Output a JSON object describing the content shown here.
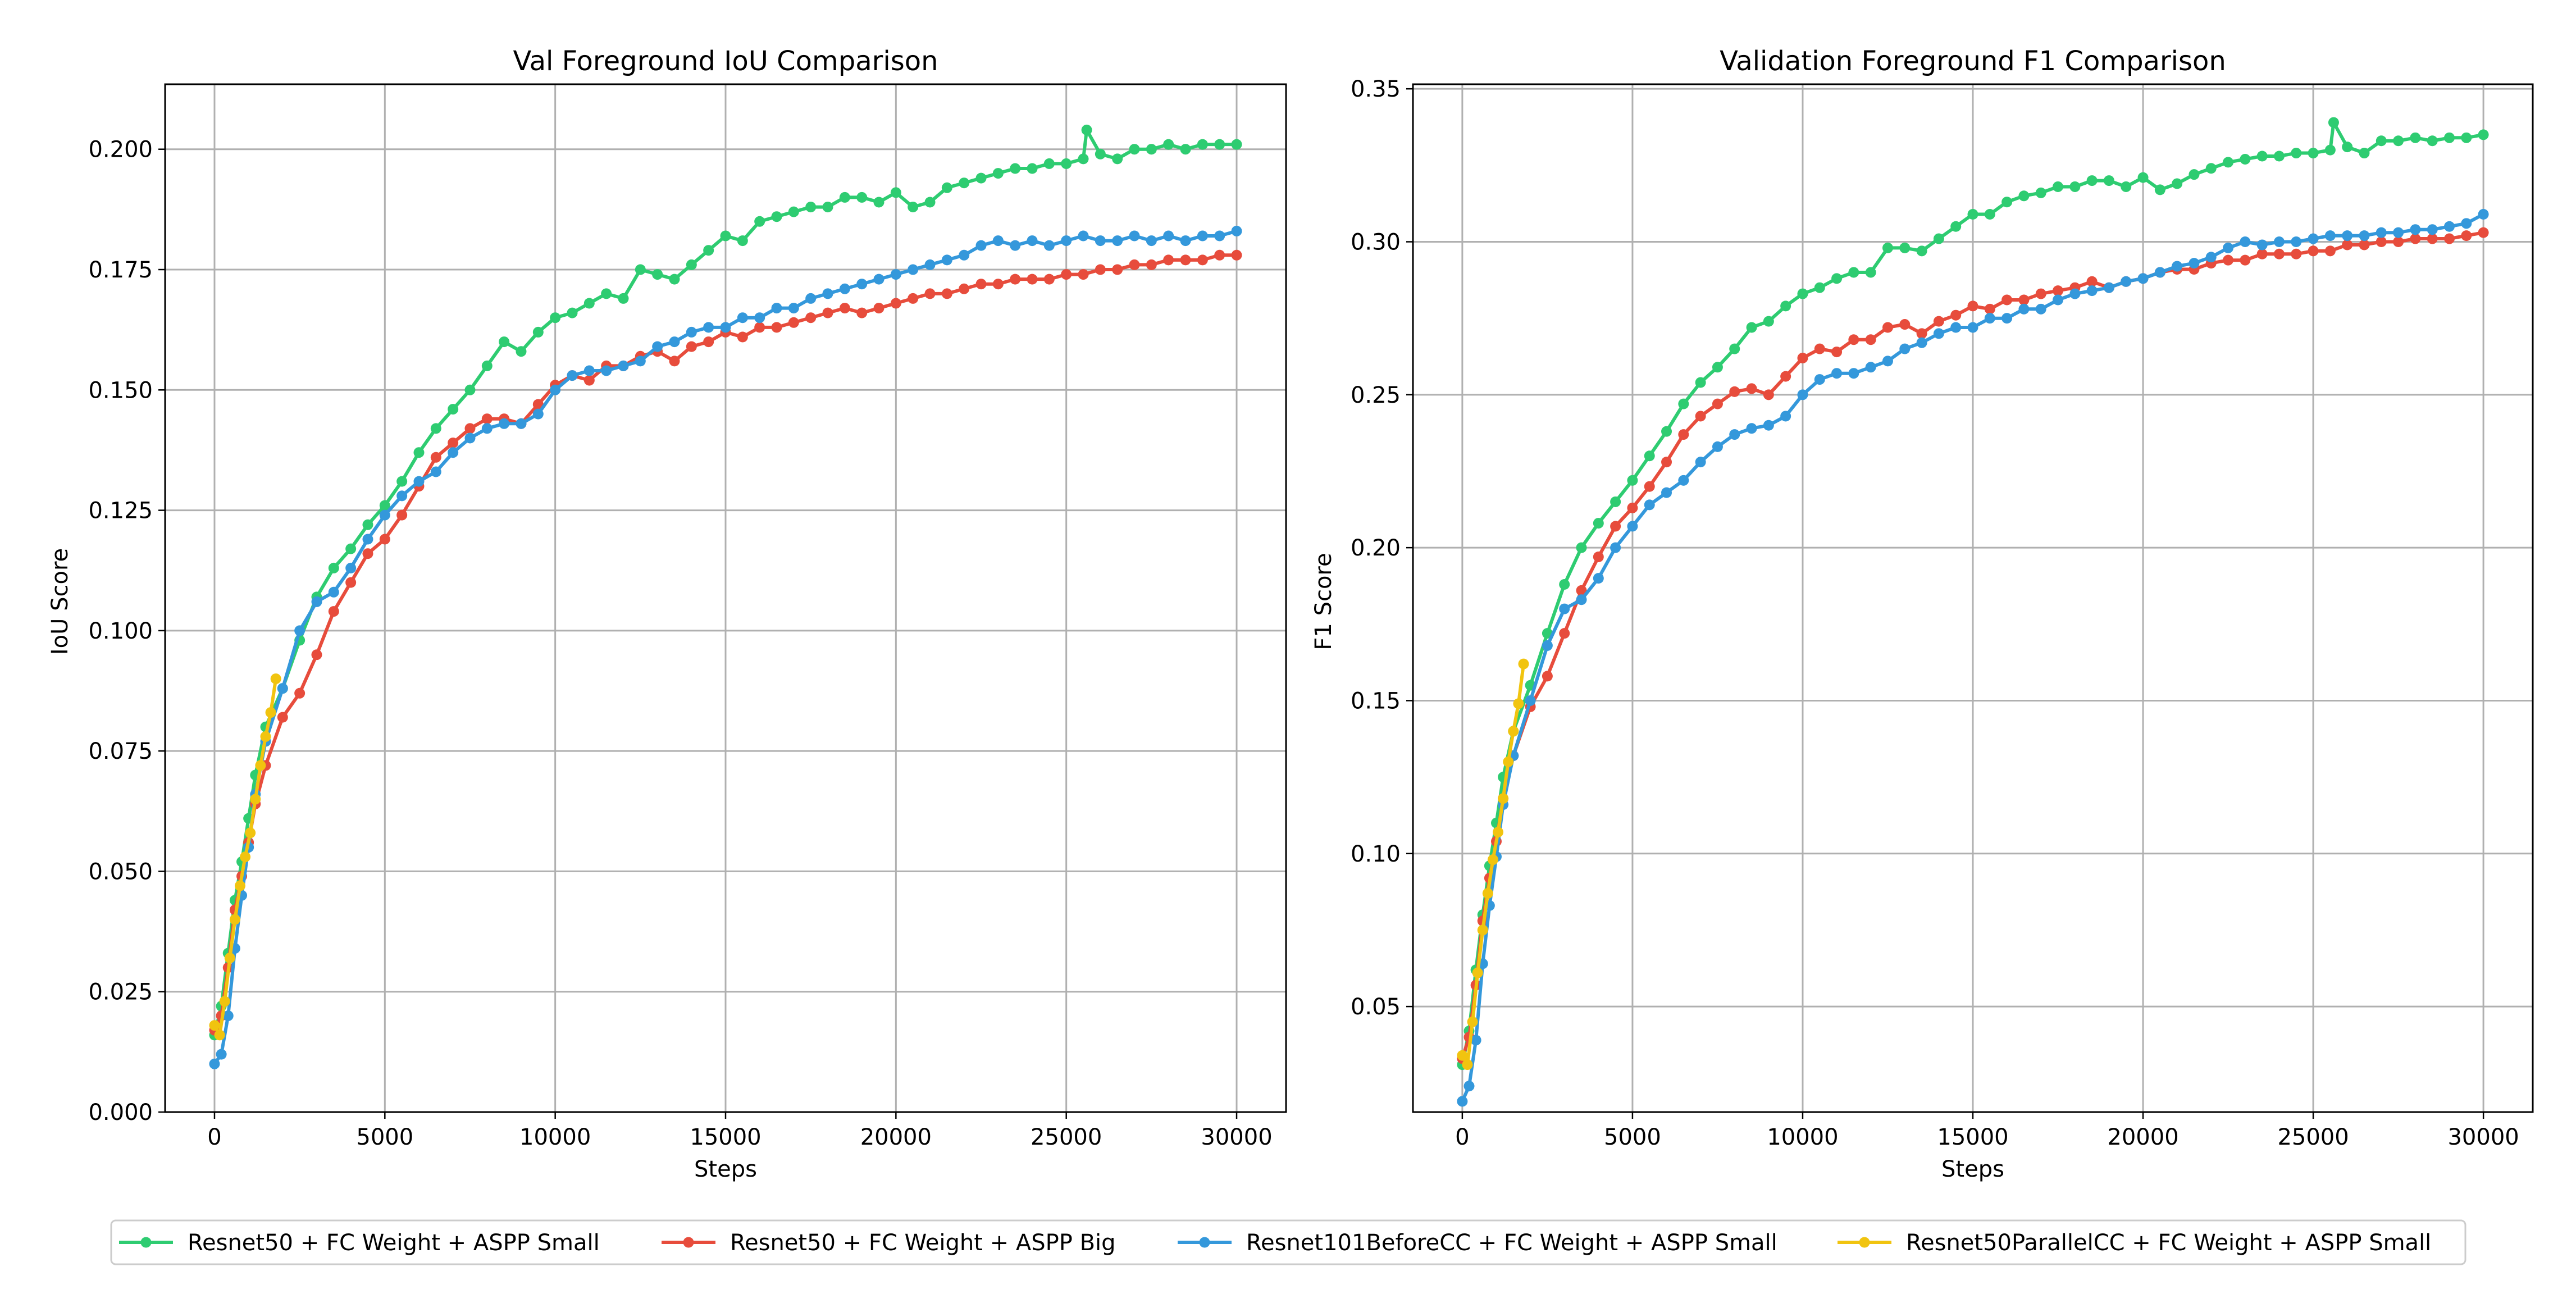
{
  "colors": {
    "green": "#2ecc71",
    "red": "#e74c3c",
    "blue": "#3498db",
    "yellow": "#f1c40f",
    "grid": "#b0b0b0"
  },
  "legend": {
    "placement": "bottom-center",
    "entries": [
      {
        "label": "Resnet50 + FC Weight + ASPP Small",
        "color": "#2ecc71"
      },
      {
        "label": "Resnet50 + FC Weight + ASPP Big",
        "color": "#e74c3c"
      },
      {
        "label": "Resnet101BeforeCC + FC Weight + ASPP Small",
        "color": "#3498db"
      },
      {
        "label": "Resnet50ParallelCC + FC Weight + ASPP Small",
        "color": "#f1c40f"
      }
    ]
  },
  "chart_data": [
    {
      "type": "line",
      "title": "Val Foreground IoU Comparison",
      "xlabel": "Steps",
      "ylabel": "IoU Score",
      "xlim": [
        -1450,
        31450
      ],
      "ylim": [
        0.0,
        0.2135
      ],
      "xticks": [
        0,
        5000,
        10000,
        15000,
        20000,
        25000,
        30000
      ],
      "yticks": [
        0.0,
        0.025,
        0.05,
        0.075,
        0.1,
        0.125,
        0.15,
        0.175,
        0.2
      ],
      "ytick_labels": [
        "0.000",
        "0.025",
        "0.050",
        "0.075",
        "0.100",
        "0.125",
        "0.150",
        "0.175",
        "0.200"
      ],
      "grid": true,
      "series": [
        {
          "name": "Resnet50 + FC Weight + ASPP Small",
          "color": "#2ecc71",
          "x": [
            0,
            200,
            400,
            600,
            800,
            1000,
            1200,
            1500,
            2000,
            2500,
            3000,
            3500,
            4000,
            4500,
            5000,
            5500,
            6000,
            6500,
            7000,
            7500,
            8000,
            8500,
            9000,
            9500,
            10000,
            10500,
            11000,
            11500,
            12000,
            12500,
            13000,
            13500,
            14000,
            14500,
            15000,
            15500,
            16000,
            16500,
            17000,
            17500,
            18000,
            18500,
            19000,
            19500,
            20000,
            20500,
            21000,
            21500,
            22000,
            22500,
            23000,
            23500,
            24000,
            24500,
            25000,
            25500,
            25600,
            26000,
            26500,
            27000,
            27500,
            28000,
            28500,
            29000,
            29500,
            30000
          ],
          "values": [
            0.016,
            0.022,
            0.033,
            0.044,
            0.052,
            0.061,
            0.07,
            0.08,
            0.088,
            0.098,
            0.107,
            0.113,
            0.117,
            0.122,
            0.126,
            0.131,
            0.137,
            0.142,
            0.146,
            0.15,
            0.155,
            0.16,
            0.158,
            0.162,
            0.165,
            0.166,
            0.168,
            0.17,
            0.169,
            0.175,
            0.174,
            0.173,
            0.176,
            0.179,
            0.182,
            0.181,
            0.185,
            0.186,
            0.187,
            0.188,
            0.188,
            0.19,
            0.19,
            0.189,
            0.191,
            0.188,
            0.189,
            0.192,
            0.193,
            0.194,
            0.195,
            0.196,
            0.196,
            0.197,
            0.197,
            0.198,
            0.204,
            0.199,
            0.198,
            0.2,
            0.2,
            0.201,
            0.2,
            0.201,
            0.201,
            0.201
          ]
        },
        {
          "name": "Resnet50 + FC Weight + ASPP Big",
          "color": "#e74c3c",
          "x": [
            0,
            200,
            400,
            600,
            800,
            1000,
            1200,
            1500,
            2000,
            2500,
            3000,
            3500,
            4000,
            4500,
            5000,
            5500,
            6000,
            6500,
            7000,
            7500,
            8000,
            8500,
            9000,
            9500,
            10000,
            10500,
            11000,
            11500,
            12000,
            12500,
            13000,
            13500,
            14000,
            14500,
            15000,
            15500,
            16000,
            16500,
            17000,
            17500,
            18000,
            18500,
            19000,
            19500,
            20000,
            20500,
            21000,
            21500,
            22000,
            22500,
            23000,
            23500,
            24000,
            24500,
            25000,
            25500,
            26000,
            26500,
            27000,
            27500,
            28000,
            28500,
            29000,
            29500,
            30000
          ],
          "values": [
            0.017,
            0.02,
            0.03,
            0.042,
            0.049,
            0.056,
            0.064,
            0.072,
            0.082,
            0.087,
            0.095,
            0.104,
            0.11,
            0.116,
            0.119,
            0.124,
            0.13,
            0.136,
            0.139,
            0.142,
            0.144,
            0.144,
            0.143,
            0.147,
            0.151,
            0.153,
            0.152,
            0.155,
            0.155,
            0.157,
            0.158,
            0.156,
            0.159,
            0.16,
            0.162,
            0.161,
            0.163,
            0.163,
            0.164,
            0.165,
            0.166,
            0.167,
            0.166,
            0.167,
            0.168,
            0.169,
            0.17,
            0.17,
            0.171,
            0.172,
            0.172,
            0.173,
            0.173,
            0.173,
            0.174,
            0.174,
            0.175,
            0.175,
            0.176,
            0.176,
            0.177,
            0.177,
            0.177,
            0.178,
            0.178
          ]
        },
        {
          "name": "Resnet101BeforeCC + FC Weight + ASPP Small",
          "color": "#3498db",
          "x": [
            0,
            200,
            400,
            600,
            800,
            1000,
            1200,
            1500,
            2000,
            2500,
            3000,
            3500,
            4000,
            4500,
            5000,
            5500,
            6000,
            6500,
            7000,
            7500,
            8000,
            8500,
            9000,
            9500,
            10000,
            10500,
            11000,
            11500,
            12000,
            12500,
            13000,
            13500,
            14000,
            14500,
            15000,
            15500,
            16000,
            16500,
            17000,
            17500,
            18000,
            18500,
            19000,
            19500,
            20000,
            20500,
            21000,
            21500,
            22000,
            22500,
            23000,
            23500,
            24000,
            24500,
            25000,
            25500,
            26000,
            26500,
            27000,
            27500,
            28000,
            28500,
            29000,
            29500,
            30000
          ],
          "values": [
            0.01,
            0.012,
            0.02,
            0.034,
            0.045,
            0.055,
            0.066,
            0.077,
            0.088,
            0.1,
            0.106,
            0.108,
            0.113,
            0.119,
            0.124,
            0.128,
            0.131,
            0.133,
            0.137,
            0.14,
            0.142,
            0.143,
            0.143,
            0.145,
            0.15,
            0.153,
            0.154,
            0.154,
            0.155,
            0.156,
            0.159,
            0.16,
            0.162,
            0.163,
            0.163,
            0.165,
            0.165,
            0.167,
            0.167,
            0.169,
            0.17,
            0.171,
            0.172,
            0.173,
            0.174,
            0.175,
            0.176,
            0.177,
            0.178,
            0.18,
            0.181,
            0.18,
            0.181,
            0.18,
            0.181,
            0.182,
            0.181,
            0.181,
            0.182,
            0.181,
            0.182,
            0.181,
            0.182,
            0.182,
            0.183
          ]
        },
        {
          "name": "Resnet50ParallelCC + FC Weight + ASPP Small",
          "color": "#f1c40f",
          "x": [
            0,
            150,
            300,
            450,
            600,
            750,
            900,
            1050,
            1200,
            1350,
            1500,
            1650,
            1800
          ],
          "values": [
            0.018,
            0.016,
            0.023,
            0.032,
            0.04,
            0.047,
            0.053,
            0.058,
            0.065,
            0.072,
            0.078,
            0.083,
            0.09
          ]
        }
      ]
    },
    {
      "type": "line",
      "title": "Validation Foreground F1 Comparison",
      "xlabel": "Steps",
      "ylabel": "F1 Score",
      "xlim": [
        -1450,
        31450
      ],
      "ylim": [
        0.0155,
        0.3515
      ],
      "xticks": [
        0,
        5000,
        10000,
        15000,
        20000,
        25000,
        30000
      ],
      "yticks": [
        0.05,
        0.1,
        0.15,
        0.2,
        0.25,
        0.3,
        0.35
      ],
      "ytick_labels": [
        "0.05",
        "0.10",
        "0.15",
        "0.20",
        "0.25",
        "0.30",
        "0.35"
      ],
      "grid": true,
      "series": [
        {
          "name": "Resnet50 + FC Weight + ASPP Small",
          "color": "#2ecc71",
          "x": [
            0,
            200,
            400,
            600,
            800,
            1000,
            1200,
            1500,
            2000,
            2500,
            3000,
            3500,
            4000,
            4500,
            5000,
            5500,
            6000,
            6500,
            7000,
            7500,
            8000,
            8500,
            9000,
            9500,
            10000,
            10500,
            11000,
            11500,
            12000,
            12500,
            13000,
            13500,
            14000,
            14500,
            15000,
            15500,
            16000,
            16500,
            17000,
            17500,
            18000,
            18500,
            19000,
            19500,
            20000,
            20500,
            21000,
            21500,
            22000,
            22500,
            23000,
            23500,
            24000,
            24500,
            25000,
            25500,
            25600,
            26000,
            26500,
            27000,
            27500,
            28000,
            28500,
            29000,
            29500,
            30000
          ],
          "values": [
            0.031,
            0.042,
            0.062,
            0.08,
            0.096,
            0.11,
            0.125,
            0.14,
            0.155,
            0.172,
            0.188,
            0.2,
            0.208,
            0.215,
            0.222,
            0.23,
            0.238,
            0.247,
            0.254,
            0.259,
            0.265,
            0.272,
            0.274,
            0.279,
            0.283,
            0.285,
            0.288,
            0.29,
            0.29,
            0.298,
            0.298,
            0.297,
            0.301,
            0.305,
            0.309,
            0.309,
            0.313,
            0.315,
            0.316,
            0.318,
            0.318,
            0.32,
            0.32,
            0.318,
            0.321,
            0.317,
            0.319,
            0.322,
            0.324,
            0.326,
            0.327,
            0.328,
            0.328,
            0.329,
            0.329,
            0.33,
            0.339,
            0.331,
            0.329,
            0.333,
            0.333,
            0.334,
            0.333,
            0.334,
            0.334,
            0.335
          ]
        },
        {
          "name": "Resnet50 + FC Weight + ASPP Big",
          "color": "#e74c3c",
          "x": [
            0,
            200,
            400,
            600,
            800,
            1000,
            1200,
            1500,
            2000,
            2500,
            3000,
            3500,
            4000,
            4500,
            5000,
            5500,
            6000,
            6500,
            7000,
            7500,
            8000,
            8500,
            9000,
            9500,
            10000,
            10500,
            11000,
            11500,
            12000,
            12500,
            13000,
            13500,
            14000,
            14500,
            15000,
            15500,
            16000,
            16500,
            17000,
            17500,
            18000,
            18500,
            19000,
            19500,
            20000,
            20500,
            21000,
            21500,
            22000,
            22500,
            23000,
            23500,
            24000,
            24500,
            25000,
            25500,
            26000,
            26500,
            27000,
            27500,
            28000,
            28500,
            29000,
            29500,
            30000
          ],
          "values": [
            0.033,
            0.04,
            0.057,
            0.078,
            0.092,
            0.104,
            0.118,
            0.132,
            0.148,
            0.158,
            0.172,
            0.186,
            0.197,
            0.207,
            0.213,
            0.22,
            0.228,
            0.237,
            0.243,
            0.247,
            0.251,
            0.252,
            0.25,
            0.256,
            0.262,
            0.265,
            0.264,
            0.268,
            0.268,
            0.272,
            0.273,
            0.27,
            0.274,
            0.276,
            0.279,
            0.278,
            0.281,
            0.281,
            0.283,
            0.284,
            0.285,
            0.287,
            0.285,
            0.287,
            0.288,
            0.29,
            0.291,
            0.291,
            0.293,
            0.294,
            0.294,
            0.296,
            0.296,
            0.296,
            0.297,
            0.297,
            0.299,
            0.299,
            0.3,
            0.3,
            0.301,
            0.301,
            0.301,
            0.302,
            0.303
          ]
        },
        {
          "name": "Resnet101BeforeCC + FC Weight + ASPP Small",
          "color": "#3498db",
          "x": [
            0,
            200,
            400,
            600,
            800,
            1000,
            1200,
            1500,
            2000,
            2500,
            3000,
            3500,
            4000,
            4500,
            5000,
            5500,
            6000,
            6500,
            7000,
            7500,
            8000,
            8500,
            9000,
            9500,
            10000,
            10500,
            11000,
            11500,
            12000,
            12500,
            13000,
            13500,
            14000,
            14500,
            15000,
            15500,
            16000,
            16500,
            17000,
            17500,
            18000,
            18500,
            19000,
            19500,
            20000,
            20500,
            21000,
            21500,
            22000,
            22500,
            23000,
            23500,
            24000,
            24500,
            25000,
            25500,
            26000,
            26500,
            27000,
            27500,
            28000,
            28500,
            29000,
            29500,
            30000
          ],
          "values": [
            0.019,
            0.024,
            0.039,
            0.064,
            0.083,
            0.099,
            0.116,
            0.132,
            0.15,
            0.168,
            0.18,
            0.183,
            0.19,
            0.2,
            0.207,
            0.214,
            0.218,
            0.222,
            0.228,
            0.233,
            0.237,
            0.239,
            0.24,
            0.243,
            0.25,
            0.255,
            0.257,
            0.257,
            0.259,
            0.261,
            0.265,
            0.267,
            0.27,
            0.272,
            0.272,
            0.275,
            0.275,
            0.278,
            0.278,
            0.281,
            0.283,
            0.284,
            0.285,
            0.287,
            0.288,
            0.29,
            0.292,
            0.293,
            0.295,
            0.298,
            0.3,
            0.299,
            0.3,
            0.3,
            0.301,
            0.302,
            0.302,
            0.302,
            0.303,
            0.303,
            0.304,
            0.304,
            0.305,
            0.306,
            0.309
          ]
        },
        {
          "name": "Resnet50ParallelCC + FC Weight + ASPP Small",
          "color": "#f1c40f",
          "x": [
            0,
            150,
            300,
            450,
            600,
            750,
            900,
            1050,
            1200,
            1350,
            1500,
            1650,
            1800
          ],
          "values": [
            0.034,
            0.031,
            0.045,
            0.061,
            0.075,
            0.087,
            0.098,
            0.107,
            0.118,
            0.13,
            0.14,
            0.149,
            0.162
          ]
        }
      ]
    }
  ]
}
